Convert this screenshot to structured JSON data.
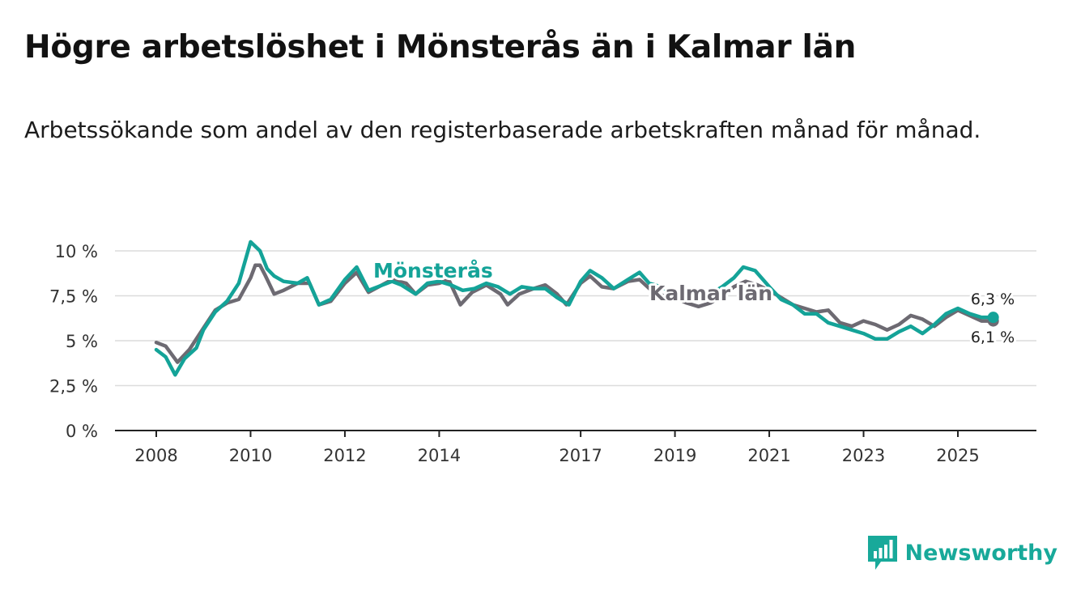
{
  "header": {
    "title": "Högre arbetslöshet i Mönsterås än i Kalmar län",
    "subtitle": "Arbetssökande som andel av den registerbaserade arbetskraften månad för månad."
  },
  "brand": {
    "name": "Newsworthy"
  },
  "colors": {
    "monsteras": "#14a398",
    "kalmar": "#6d6a72",
    "grid": "#dcdcdc",
    "axis": "#222222"
  },
  "chart_data": {
    "type": "line",
    "title": "Högre arbetslöshet i Mönsterås än i Kalmar län",
    "xlabel": "",
    "ylabel": "",
    "ylim": [
      0,
      10
    ],
    "xlim": [
      2008,
      2026
    ],
    "y_ticks": [
      "0 %",
      "2,5 %",
      "5 %",
      "7,5 %",
      "10 %"
    ],
    "y_tick_values": [
      0,
      2.5,
      5,
      7.5,
      10
    ],
    "x_ticks": [
      "2008",
      "2010",
      "2012",
      "2014",
      "2017",
      "2019",
      "2021",
      "2023",
      "2025"
    ],
    "x_tick_values": [
      2008,
      2010,
      2012,
      2014,
      2017,
      2019,
      2021,
      2023,
      2025
    ],
    "grid": true,
    "series": [
      {
        "name": "Kalmar län",
        "color": "#6d6a72",
        "end_label": "6,1 %",
        "points": [
          [
            2008.0,
            4.9
          ],
          [
            2008.2,
            4.7
          ],
          [
            2008.45,
            3.8
          ],
          [
            2008.7,
            4.5
          ],
          [
            2009.0,
            5.7
          ],
          [
            2009.25,
            6.7
          ],
          [
            2009.5,
            7.1
          ],
          [
            2009.75,
            7.3
          ],
          [
            2010.0,
            8.5
          ],
          [
            2010.1,
            9.2
          ],
          [
            2010.2,
            9.2
          ],
          [
            2010.3,
            8.7
          ],
          [
            2010.5,
            7.6
          ],
          [
            2010.7,
            7.8
          ],
          [
            2011.0,
            8.2
          ],
          [
            2011.25,
            8.2
          ],
          [
            2011.45,
            7.0
          ],
          [
            2011.7,
            7.2
          ],
          [
            2012.0,
            8.2
          ],
          [
            2012.25,
            8.8
          ],
          [
            2012.5,
            7.7
          ],
          [
            2013.0,
            8.4
          ],
          [
            2013.3,
            8.2
          ],
          [
            2013.5,
            7.6
          ],
          [
            2013.75,
            8.1
          ],
          [
            2014.0,
            8.2
          ],
          [
            2014.2,
            8.4
          ],
          [
            2014.45,
            7.0
          ],
          [
            2014.7,
            7.7
          ],
          [
            2015.0,
            8.1
          ],
          [
            2015.3,
            7.6
          ],
          [
            2015.45,
            7.0
          ],
          [
            2015.7,
            7.6
          ],
          [
            2016.0,
            7.9
          ],
          [
            2016.25,
            8.1
          ],
          [
            2016.5,
            7.6
          ],
          [
            2016.7,
            7.0
          ],
          [
            2017.0,
            8.2
          ],
          [
            2017.2,
            8.6
          ],
          [
            2017.45,
            8.0
          ],
          [
            2017.7,
            7.9
          ],
          [
            2018.0,
            8.3
          ],
          [
            2018.25,
            8.4
          ],
          [
            2018.5,
            7.8
          ],
          [
            2018.75,
            7.5
          ],
          [
            2019.0,
            7.4
          ],
          [
            2019.25,
            7.1
          ],
          [
            2019.5,
            6.9
          ],
          [
            2019.75,
            7.1
          ],
          [
            2020.0,
            7.5
          ],
          [
            2020.25,
            8.0
          ],
          [
            2020.5,
            8.3
          ],
          [
            2020.75,
            8.1
          ],
          [
            2021.0,
            7.8
          ],
          [
            2021.25,
            7.4
          ],
          [
            2021.5,
            7.0
          ],
          [
            2021.75,
            6.8
          ],
          [
            2022.0,
            6.6
          ],
          [
            2022.25,
            6.7
          ],
          [
            2022.5,
            6.0
          ],
          [
            2022.75,
            5.8
          ],
          [
            2023.0,
            6.1
          ],
          [
            2023.25,
            5.9
          ],
          [
            2023.5,
            5.6
          ],
          [
            2023.75,
            5.9
          ],
          [
            2024.0,
            6.4
          ],
          [
            2024.25,
            6.2
          ],
          [
            2024.5,
            5.8
          ],
          [
            2024.75,
            6.3
          ],
          [
            2025.0,
            6.7
          ],
          [
            2025.25,
            6.4
          ],
          [
            2025.5,
            6.1
          ],
          [
            2025.75,
            6.1
          ]
        ]
      },
      {
        "name": "Mönsterås",
        "color": "#14a398",
        "end_label": "6,3 %",
        "points": [
          [
            2008.0,
            4.5
          ],
          [
            2008.2,
            4.1
          ],
          [
            2008.4,
            3.1
          ],
          [
            2008.6,
            4.0
          ],
          [
            2008.85,
            4.6
          ],
          [
            2009.0,
            5.6
          ],
          [
            2009.25,
            6.6
          ],
          [
            2009.5,
            7.2
          ],
          [
            2009.75,
            8.2
          ],
          [
            2010.0,
            10.5
          ],
          [
            2010.2,
            10.0
          ],
          [
            2010.35,
            9.0
          ],
          [
            2010.5,
            8.6
          ],
          [
            2010.7,
            8.3
          ],
          [
            2011.0,
            8.2
          ],
          [
            2011.2,
            8.5
          ],
          [
            2011.45,
            7.0
          ],
          [
            2011.7,
            7.3
          ],
          [
            2012.0,
            8.4
          ],
          [
            2012.25,
            9.1
          ],
          [
            2012.5,
            7.8
          ],
          [
            2013.0,
            8.3
          ],
          [
            2013.2,
            8.1
          ],
          [
            2013.5,
            7.6
          ],
          [
            2013.75,
            8.2
          ],
          [
            2014.0,
            8.3
          ],
          [
            2014.25,
            8.1
          ],
          [
            2014.5,
            7.8
          ],
          [
            2014.75,
            7.9
          ],
          [
            2015.0,
            8.2
          ],
          [
            2015.25,
            8.0
          ],
          [
            2015.5,
            7.6
          ],
          [
            2015.75,
            8.0
          ],
          [
            2016.0,
            7.9
          ],
          [
            2016.25,
            7.9
          ],
          [
            2016.5,
            7.4
          ],
          [
            2016.75,
            7.0
          ],
          [
            2017.0,
            8.3
          ],
          [
            2017.2,
            8.9
          ],
          [
            2017.45,
            8.5
          ],
          [
            2017.7,
            7.9
          ],
          [
            2018.0,
            8.4
          ],
          [
            2018.25,
            8.8
          ],
          [
            2018.45,
            8.2
          ],
          [
            2018.7,
            8.0
          ],
          [
            2019.0,
            7.6
          ],
          [
            2019.25,
            7.4
          ],
          [
            2019.5,
            7.3
          ],
          [
            2019.75,
            7.6
          ],
          [
            2020.0,
            8.0
          ],
          [
            2020.25,
            8.5
          ],
          [
            2020.45,
            9.1
          ],
          [
            2020.7,
            8.9
          ],
          [
            2021.0,
            8.0
          ],
          [
            2021.25,
            7.3
          ],
          [
            2021.5,
            7.0
          ],
          [
            2021.75,
            6.5
          ],
          [
            2022.0,
            6.5
          ],
          [
            2022.25,
            6.0
          ],
          [
            2022.5,
            5.8
          ],
          [
            2022.75,
            5.6
          ],
          [
            2023.0,
            5.4
          ],
          [
            2023.25,
            5.1
          ],
          [
            2023.5,
            5.1
          ],
          [
            2023.75,
            5.5
          ],
          [
            2024.0,
            5.8
          ],
          [
            2024.25,
            5.4
          ],
          [
            2024.5,
            5.9
          ],
          [
            2024.75,
            6.5
          ],
          [
            2025.0,
            6.8
          ],
          [
            2025.25,
            6.5
          ],
          [
            2025.5,
            6.3
          ],
          [
            2025.75,
            6.3
          ]
        ]
      }
    ]
  }
}
